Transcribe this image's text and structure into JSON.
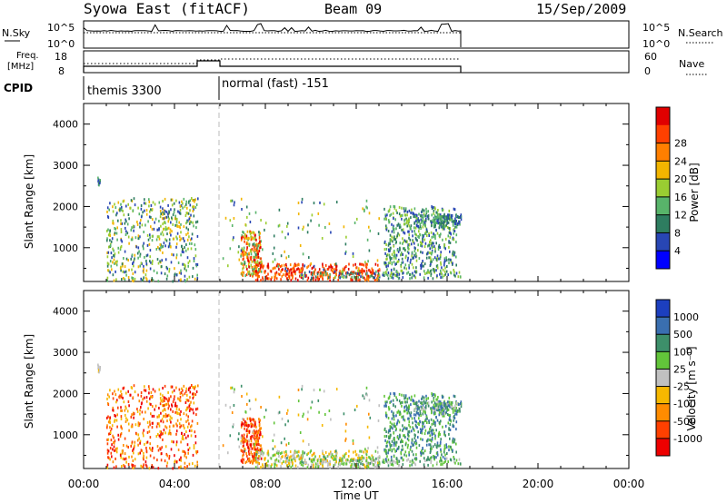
{
  "header": {
    "title": "Syowa East (fitACF)",
    "beam": "Beam 09",
    "date": "15/Sep/2009"
  },
  "panels": {
    "nsky": {
      "label": "N.Sky",
      "ticks_left": [
        "10^5",
        "10^0"
      ],
      "ticks_right": [
        "10^5",
        "10^0"
      ],
      "right_label": "N.Search"
    },
    "freq": {
      "label_line1": "Freq.",
      "label_line2": "[MHz]",
      "ticks_left": [
        "18",
        "8"
      ],
      "ticks_right": [
        "60",
        "0"
      ],
      "right_label": "Nave"
    },
    "cpid": {
      "label": "CPID",
      "modes": [
        "themis 3300",
        "normal (fast) -151"
      ]
    }
  },
  "chart_data": [
    {
      "type": "heatmap",
      "name": "power",
      "xlabel": "",
      "ylabel": "Slant Range [km]",
      "x_ticks": [
        "00:00",
        "04:00",
        "08:00",
        "12:00",
        "16:00",
        "20:00",
        "00:00"
      ],
      "y_ticks": [
        "1000",
        "2000",
        "3000",
        "4000"
      ],
      "ylim": [
        180,
        4500
      ],
      "xlim": [
        0,
        24
      ],
      "colorbar": {
        "label": "Power [dB]",
        "ticks": [
          "4",
          "8",
          "12",
          "16",
          "20",
          "24",
          "28"
        ],
        "colors": [
          "#0000ff",
          "#2846b4",
          "#2e7d60",
          "#58b46a",
          "#9acd32",
          "#f2b500",
          "#ff7f00",
          "#ff4000",
          "#e00000"
        ]
      }
    },
    {
      "type": "heatmap",
      "name": "velocity",
      "xlabel": "Time UT",
      "ylabel": "Slant Range [km]",
      "x_ticks": [
        "00:00",
        "04:00",
        "08:00",
        "12:00",
        "16:00",
        "20:00",
        "00:00"
      ],
      "y_ticks": [
        "1000",
        "2000",
        "3000",
        "4000"
      ],
      "ylim": [
        180,
        4500
      ],
      "xlim": [
        0,
        24
      ],
      "colorbar": {
        "label": "Velocity [m s⁻¹]",
        "ticks": [
          "1000",
          "500",
          "100",
          "25",
          "-25",
          "-100",
          "-500",
          "-1000"
        ],
        "colors": [
          "#1c3fbf",
          "#3a6fb0",
          "#3d8f6a",
          "#62c43a",
          "#c0c0c0",
          "#f6b800",
          "#ff8c00",
          "#ff4000",
          "#ee0000"
        ]
      }
    }
  ]
}
